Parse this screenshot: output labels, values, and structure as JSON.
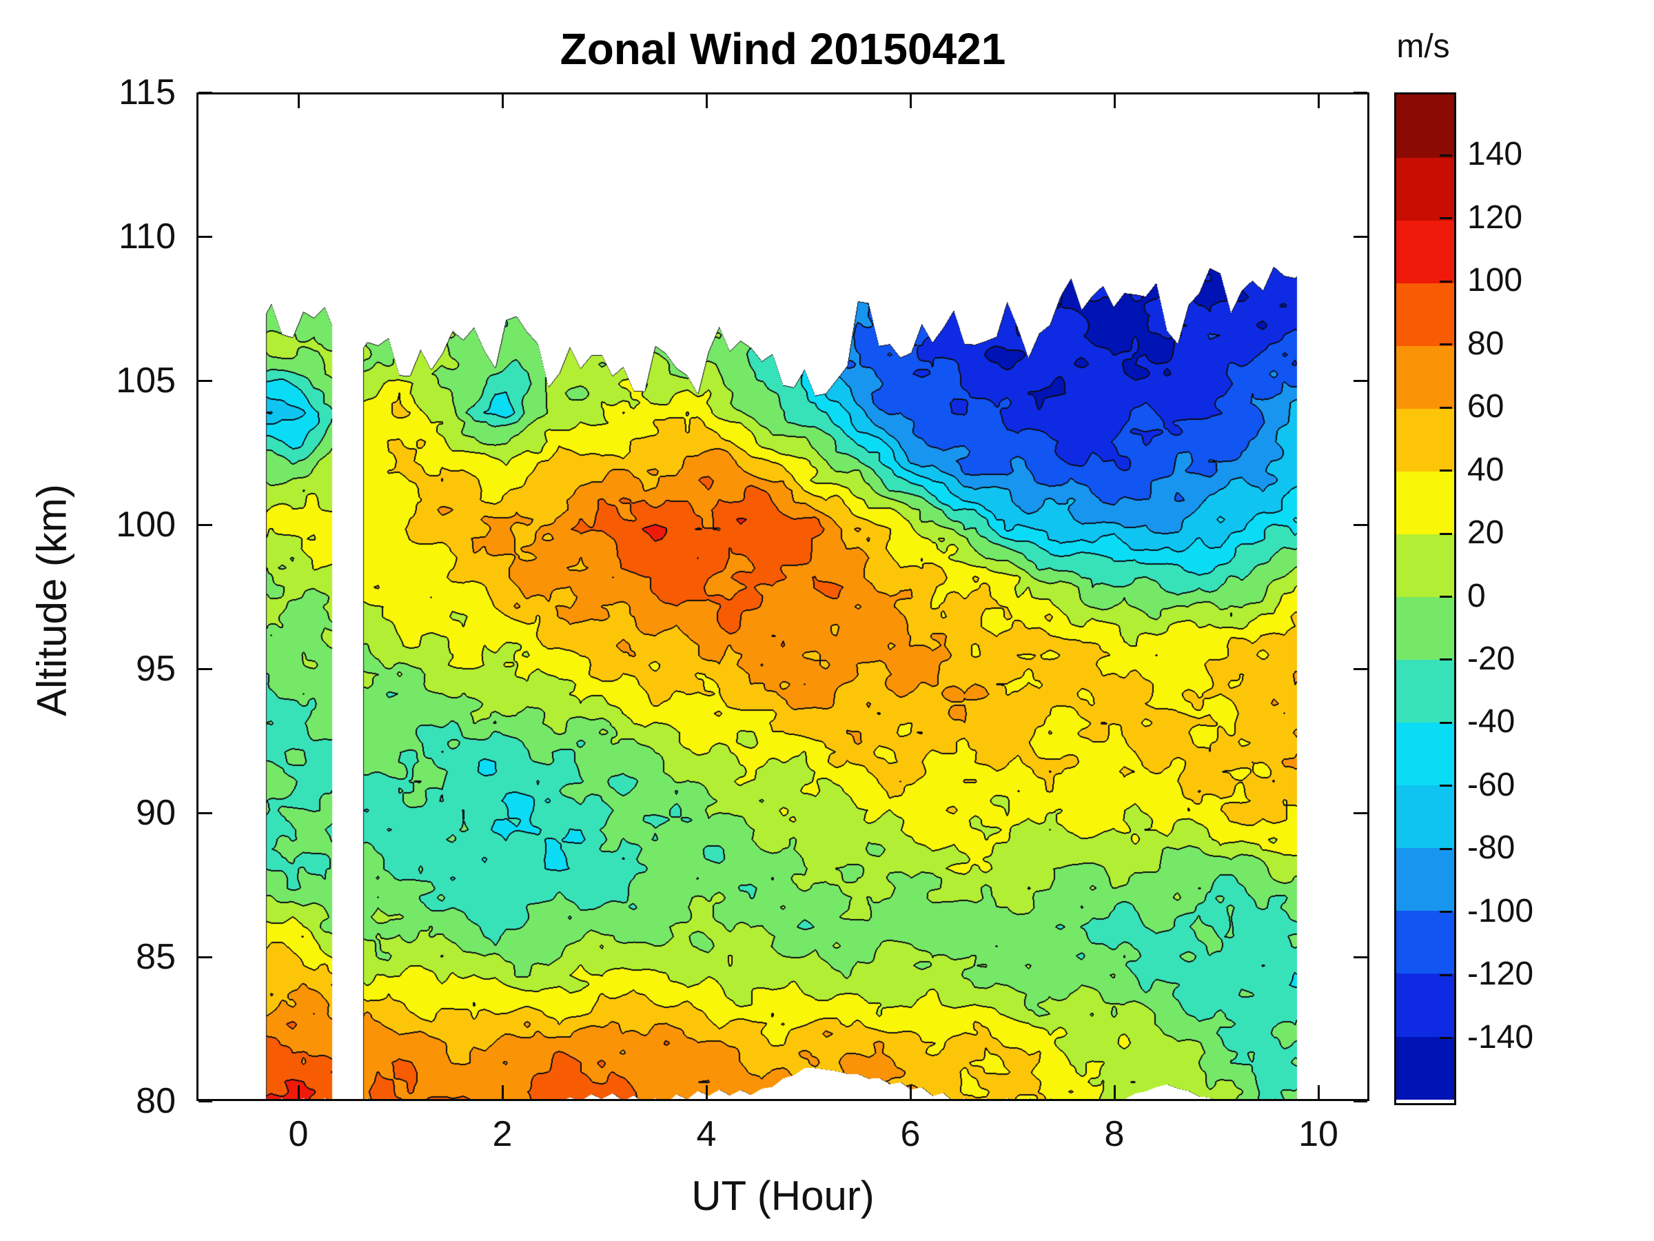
{
  "chart_data": {
    "type": "filled_contour",
    "title": "Zonal Wind 20150421",
    "xlabel": "UT (Hour)",
    "ylabel": "Altitude (km)",
    "colorbar_label": "m/s",
    "xlim": [
      -1,
      10.5
    ],
    "ylim": [
      80,
      115
    ],
    "x_ticks": [
      0,
      2,
      4,
      6,
      8,
      10
    ],
    "y_ticks": [
      80,
      85,
      90,
      95,
      100,
      105,
      110,
      115
    ],
    "colorbar_tick_values": [
      140,
      120,
      100,
      80,
      60,
      40,
      20,
      0,
      -20,
      -40,
      -60,
      -80,
      -100,
      -120,
      -140
    ],
    "levels": {
      "min": -160,
      "max": 160,
      "step": 20
    },
    "palette": [
      "#0013B4",
      "#0E2BE3",
      "#1155F2",
      "#1895EE",
      "#0FC4F0",
      "#0ADCF5",
      "#38E2B8",
      "#76E868",
      "#B2EE33",
      "#FAF607",
      "#FCC508",
      "#FB9306",
      "#F75C02",
      "#EF1A0A",
      "#C80D02",
      "#8C0A04"
    ],
    "contour_line_color": "#0b0b14",
    "background": "#ffffff",
    "frame_color": "#0a0a0a",
    "grid": {
      "t": [
        -0.5,
        0,
        0.5,
        1,
        1.5,
        2,
        2.5,
        3,
        3.5,
        4,
        4.5,
        5,
        5.5,
        6,
        6.5,
        7,
        7.5,
        8,
        8.5,
        9,
        9.5,
        10
      ],
      "altitude": [
        108,
        106,
        104,
        102,
        100,
        98,
        96,
        94,
        92,
        90,
        88,
        86,
        84,
        82,
        80
      ],
      "values": [
        [
          -20,
          -20,
          -15,
          -10,
          -10,
          -15,
          -10,
          -10,
          -5,
          0,
          -20,
          -50,
          -110,
          -120,
          -128,
          -132,
          -138,
          -142,
          -145,
          -140,
          -133,
          -125
        ],
        [
          0,
          0,
          5,
          0,
          -5,
          -10,
          5,
          0,
          -5,
          0,
          -30,
          -60,
          -100,
          -120,
          -130,
          -136,
          -140,
          -140,
          -136,
          -130,
          -120,
          -108
        ],
        [
          -70,
          -70,
          0,
          50,
          0,
          -60,
          10,
          15,
          25,
          30,
          -10,
          -40,
          -80,
          -110,
          -120,
          -126,
          -130,
          -130,
          -125,
          -118,
          -100,
          -70
        ],
        [
          -10,
          -10,
          30,
          30,
          45,
          30,
          40,
          55,
          60,
          65,
          55,
          25,
          -20,
          -70,
          -95,
          -110,
          -115,
          -115,
          -110,
          -100,
          -80,
          -50
        ],
        [
          25,
          25,
          30,
          40,
          50,
          60,
          70,
          80,
          95,
          90,
          100,
          80,
          60,
          20,
          -20,
          -55,
          -75,
          -85,
          -80,
          -70,
          -55,
          -30
        ],
        [
          5,
          5,
          20,
          30,
          40,
          55,
          65,
          75,
          85,
          80,
          85,
          75,
          65,
          55,
          40,
          20,
          0,
          -20,
          -30,
          -25,
          -5,
          20
        ],
        [
          -10,
          -10,
          5,
          15,
          20,
          30,
          40,
          50,
          60,
          65,
          70,
          72,
          70,
          60,
          55,
          45,
          40,
          35,
          30,
          30,
          45,
          80
        ],
        [
          -20,
          -20,
          -10,
          -5,
          0,
          5,
          15,
          25,
          35,
          45,
          55,
          60,
          62,
          58,
          55,
          50,
          45,
          42,
          40,
          42,
          45,
          55
        ],
        [
          -22,
          -22,
          -22,
          -20,
          -25,
          -30,
          -28,
          -15,
          0,
          10,
          20,
          30,
          40,
          45,
          42,
          40,
          38,
          40,
          42,
          45,
          50,
          62
        ],
        [
          -22,
          -22,
          -25,
          -25,
          -30,
          -38,
          -32,
          -25,
          -15,
          -5,
          5,
          12,
          20,
          28,
          30,
          25,
          22,
          25,
          30,
          35,
          45,
          55
        ],
        [
          -20,
          -20,
          -20,
          -20,
          -28,
          -40,
          -35,
          -28,
          -20,
          -15,
          -10,
          -5,
          2,
          8,
          12,
          10,
          5,
          0,
          -5,
          -10,
          -8,
          5
        ],
        [
          25,
          25,
          -5,
          -5,
          -10,
          -20,
          -18,
          -8,
          -5,
          0,
          -5,
          -8,
          -10,
          -12,
          -10,
          -15,
          -20,
          -22,
          -25,
          -28,
          -25,
          -15
        ],
        [
          55,
          55,
          30,
          30,
          22,
          18,
          20,
          30,
          25,
          22,
          15,
          10,
          15,
          10,
          5,
          0,
          -5,
          -10,
          -20,
          -30,
          -38,
          -30
        ],
        [
          85,
          85,
          70,
          70,
          62,
          60,
          65,
          78,
          70,
          60,
          55,
          50,
          55,
          50,
          45,
          35,
          25,
          15,
          5,
          -10,
          -28,
          -20
        ],
        [
          100,
          100,
          88,
          78,
          75,
          80,
          90,
          85,
          80,
          75,
          70,
          75,
          70,
          60,
          50,
          45,
          30,
          20,
          10,
          0,
          -15,
          -10
        ]
      ]
    },
    "mask": {
      "t_min": -0.32,
      "t_max": 9.79,
      "gap": [
        0.33,
        0.63
      ],
      "top_boundary": [
        107.2,
        107.2,
        106.2,
        105.6,
        106.1,
        106.8,
        105.7,
        105.5,
        105.2,
        105.8,
        106.4,
        104.1,
        106.9,
        106.2,
        106.9,
        106.4,
        107.6,
        108.3,
        107.2,
        108.2,
        108.5,
        108.4
      ],
      "bottom_boundary": [
        80,
        80,
        80,
        80,
        80,
        80,
        80,
        80.2,
        80,
        80.3,
        80.3,
        81.2,
        80.9,
        80.5,
        80,
        80,
        80,
        80,
        80.6,
        80,
        80,
        80
      ]
    }
  }
}
